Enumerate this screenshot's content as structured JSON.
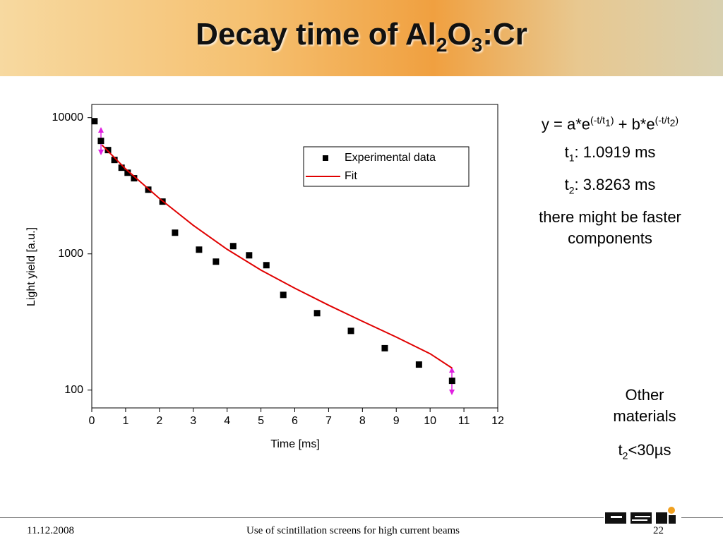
{
  "header": {
    "title": [
      "Decay time of Al",
      "2",
      "O",
      "3",
      ":Cr"
    ]
  },
  "chart_data": {
    "type": "scatter",
    "x_label": "Time [ms]",
    "y_label": "Light yield [a.u.]",
    "xlim": [
      0,
      12
    ],
    "xticks": [
      0,
      1,
      2,
      3,
      4,
      5,
      6,
      7,
      8,
      9,
      10,
      11,
      12
    ],
    "ylim": [
      74,
      12500
    ],
    "yticks": [
      100,
      1000,
      10000
    ],
    "y_log": true,
    "legend": "upper right",
    "series": [
      {
        "name": "Experimental data",
        "kind": "points",
        "color": "#000000",
        "x": [
          0.08,
          0.27,
          0.48,
          0.67,
          0.88,
          1.06,
          1.25,
          1.67,
          2.09,
          2.46,
          3.17,
          3.67,
          4.18,
          4.65,
          5.16,
          5.66,
          6.66,
          7.66,
          8.66,
          9.67,
          10.65
        ],
        "values": [
          9420,
          6750,
          5780,
          4890,
          4290,
          3940,
          3590,
          2960,
          2420,
          1430,
          1074,
          877,
          1140,
          976,
          826,
          500,
          367,
          272,
          203,
          154,
          117
        ]
      },
      {
        "name": "Fit",
        "kind": "line",
        "color": "#e00000",
        "x": [
          0.3,
          1,
          2,
          3,
          4,
          5,
          6,
          7,
          8,
          9,
          10,
          10.65
        ],
        "values": [
          6300,
          4200,
          2550,
          1620,
          1080,
          760,
          560,
          420,
          320,
          245,
          185,
          145
        ]
      }
    ]
  },
  "side": {
    "formula": [
      "y = a*e",
      "(-t/t",
      "1",
      ")",
      " + b*e",
      "(-t/t",
      "2",
      ")"
    ],
    "t1": [
      "t",
      "1",
      ": 1.0919 ms"
    ],
    "t2": [
      "t",
      "2",
      ": 3.8263 ms"
    ],
    "note": "there might be faster components",
    "other": "Other materials",
    "t2_other": [
      "t",
      "2",
      "<30µs"
    ]
  },
  "footer": {
    "date": "11.12.2008",
    "subject": "Use of scintillation screens for high current beams",
    "page": "22"
  }
}
